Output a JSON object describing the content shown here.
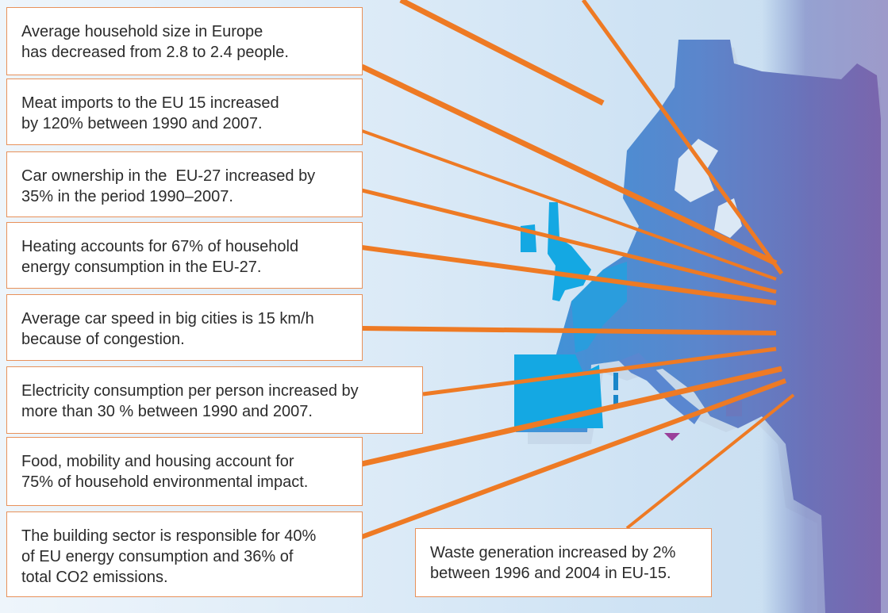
{
  "colors": {
    "ray": "#ee7a24",
    "box_border": "#e8915a",
    "map_light_blue": "#1aa5e0",
    "map_mid_blue": "#4f8ed3",
    "map_purple": "#7a66ad",
    "marker": "#9a3f9a"
  },
  "facts": [
    {
      "id": "household-size",
      "lines": [
        "Average household size in Europe",
        "has decreased from 2.8 to 2.4 people."
      ]
    },
    {
      "id": "meat-imports",
      "lines": [
        "Meat imports to the EU 15 increased",
        "by 120% between 1990 and 2007."
      ]
    },
    {
      "id": "car-ownership",
      "lines": [
        "Car ownership in the  EU-27 increased by",
        "35% in the period 1990–2007."
      ]
    },
    {
      "id": "heating",
      "lines": [
        "Heating accounts for 67% of household",
        "energy consumption in the EU-27."
      ]
    },
    {
      "id": "car-speed",
      "lines": [
        "Average car speed in big cities is 15 km/h",
        "because of congestion."
      ]
    },
    {
      "id": "electricity",
      "lines": [
        "Electricity consumption per person increased by",
        "more than 30 % between 1990 and 2007."
      ]
    },
    {
      "id": "food-mobility-housing",
      "lines": [
        "Food, mobility and housing account for",
        "75% of household environmental impact."
      ]
    },
    {
      "id": "building-sector",
      "lines": [
        "The building sector is responsible for 40%",
        "of EU energy consumption and 36% of",
        "total CO2 emissions."
      ]
    },
    {
      "id": "waste-generation",
      "lines": [
        "Waste generation increased by 2%",
        "between 1996 and 2004 in EU-15."
      ]
    }
  ]
}
